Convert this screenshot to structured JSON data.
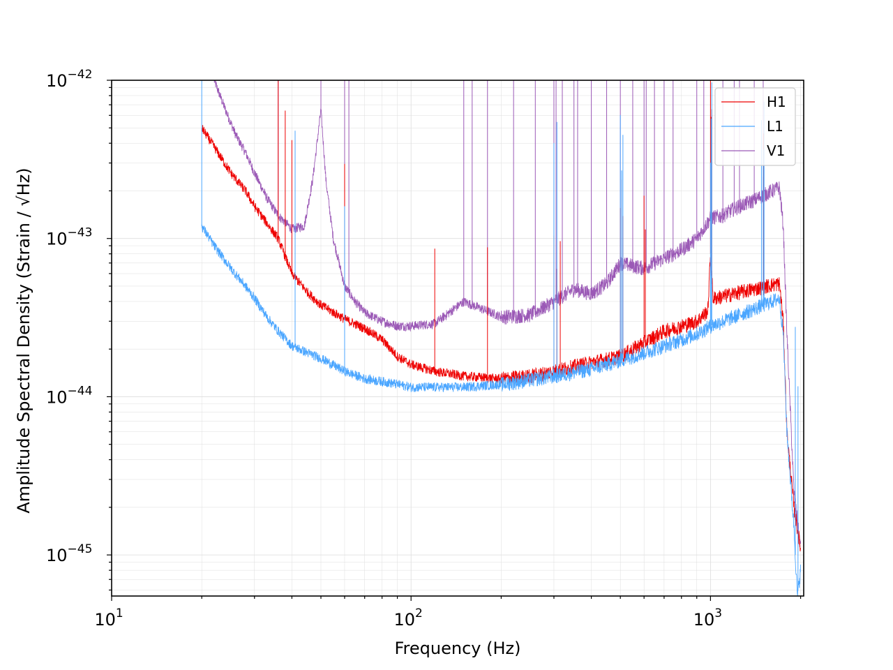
{
  "chart_data": {
    "type": "line",
    "title": "",
    "xlabel": "Frequency (Hz)",
    "ylabel": "Amplitude Spectral Density (Strain / √Hz)",
    "xscale": "log",
    "yscale": "log",
    "xlim": [
      10,
      2048
    ],
    "ylim": [
      5.5e-46,
      1e-42
    ],
    "grid": true,
    "legend_position": "top-right",
    "x_ticks": [
      {
        "value": 10,
        "base": "10",
        "exp": "1"
      },
      {
        "value": 100,
        "base": "10",
        "exp": "2"
      },
      {
        "value": 1000,
        "base": "10",
        "exp": "3"
      }
    ],
    "y_ticks": [
      {
        "value": 1e-42,
        "base": "10",
        "exp": "−42"
      },
      {
        "value": 1e-43,
        "base": "10",
        "exp": "−43"
      },
      {
        "value": 1e-44,
        "base": "10",
        "exp": "−44"
      },
      {
        "value": 1e-45,
        "base": "10",
        "exp": "−45"
      }
    ],
    "series": [
      {
        "name": "H1",
        "color": "#ee0000",
        "x": [
          20,
          22,
          25,
          28,
          30,
          33,
          36,
          40,
          45,
          50,
          60,
          70,
          80,
          90,
          100,
          120,
          150,
          200,
          250,
          300,
          400,
          500,
          600,
          700,
          800,
          900,
          980,
          1000,
          1020,
          1100,
          1200,
          1400,
          1600,
          1700,
          1750,
          1800,
          1900,
          2000
        ],
        "y": [
          5e-43,
          3.8e-43,
          2.6e-43,
          2e-43,
          1.6e-43,
          1.25e-43,
          1e-43,
          6e-44,
          4.6e-44,
          3.8e-44,
          3.1e-44,
          2.7e-44,
          2.3e-44,
          1.8e-44,
          1.6e-44,
          1.45e-44,
          1.35e-44,
          1.3e-44,
          1.35e-44,
          1.45e-44,
          1.65e-44,
          1.8e-44,
          2.2e-44,
          2.6e-44,
          2.8e-44,
          3e-44,
          3.5e-44,
          8e-44,
          4.2e-44,
          4.3e-44,
          4.5e-44,
          4.8e-44,
          5.1e-44,
          5.2e-44,
          3e-44,
          6e-45,
          2e-45,
          1.1e-45
        ],
        "lines_hz": [
          36,
          38,
          40,
          60,
          120,
          180,
          300,
          307,
          315,
          500,
          505,
          510,
          600,
          606,
          1000,
          1005,
          1010,
          1500,
          1505
        ]
      },
      {
        "name": "L1",
        "color": "#4ba6ff",
        "x": [
          20,
          22,
          25,
          28,
          30,
          33,
          36,
          40,
          45,
          50,
          60,
          70,
          80,
          90,
          100,
          120,
          150,
          200,
          250,
          300,
          400,
          500,
          600,
          700,
          800,
          900,
          1000,
          1200,
          1400,
          1600,
          1700,
          1750,
          1800,
          1900,
          1950,
          2000
        ],
        "y": [
          1.2e-43,
          9e-44,
          6.5e-44,
          5e-44,
          4.2e-44,
          3.2e-44,
          2.6e-44,
          2.1e-44,
          1.9e-44,
          1.75e-44,
          1.45e-44,
          1.3e-44,
          1.25e-44,
          1.2e-44,
          1.15e-44,
          1.15e-44,
          1.15e-44,
          1.2e-44,
          1.28e-44,
          1.35e-44,
          1.5e-44,
          1.7e-44,
          1.9e-44,
          2.1e-44,
          2.3e-44,
          2.5e-44,
          2.8e-44,
          3.2e-44,
          3.6e-44,
          4e-44,
          4.2e-44,
          2.5e-44,
          6e-45,
          1.5e-45,
          5.5e-46,
          8e-46
        ],
        "lines_hz": [
          20,
          41,
          60,
          300,
          307,
          500,
          505,
          510,
          1000,
          1005,
          1010,
          1480,
          1500,
          1510,
          1920,
          1960
        ]
      },
      {
        "name": "V1",
        "color": "#9b59b6",
        "x": [
          22,
          24,
          26,
          28,
          30,
          33,
          36,
          40,
          44,
          47,
          50,
          52,
          55,
          60,
          65,
          70,
          80,
          90,
          100,
          120,
          150,
          200,
          250,
          300,
          350,
          400,
          450,
          500,
          600,
          700,
          800,
          900,
          1000,
          1100,
          1200,
          1400,
          1600,
          1700,
          1750,
          1800,
          1900,
          2000
        ],
        "y": [
          1e-42,
          6.5e-43,
          4.5e-43,
          3.5e-43,
          2.6e-43,
          1.8e-43,
          1.4e-43,
          1.15e-43,
          1.2e-43,
          2.4e-43,
          6.5e-43,
          2.3e-43,
          1e-43,
          5e-44,
          4e-44,
          3.4e-44,
          3e-44,
          2.8e-44,
          2.8e-44,
          2.9e-44,
          4e-44,
          3.2e-44,
          3.3e-44,
          4e-44,
          4.8e-44,
          4.5e-44,
          5.2e-44,
          7e-44,
          6.5e-44,
          7.5e-44,
          8.5e-44,
          1e-43,
          1.35e-43,
          1.4e-43,
          1.55e-43,
          1.75e-43,
          2e-43,
          2.1e-43,
          1.2e-43,
          2.5e-44,
          2.5e-45,
          1.1e-45
        ],
        "lines_hz": [
          36,
          50,
          60,
          62,
          150,
          160,
          180,
          220,
          260,
          300,
          305,
          320,
          350,
          360,
          400,
          450,
          500,
          550,
          600,
          610,
          650,
          700,
          750,
          900,
          950,
          1100,
          1200,
          1250,
          1400,
          1500
        ]
      }
    ]
  }
}
